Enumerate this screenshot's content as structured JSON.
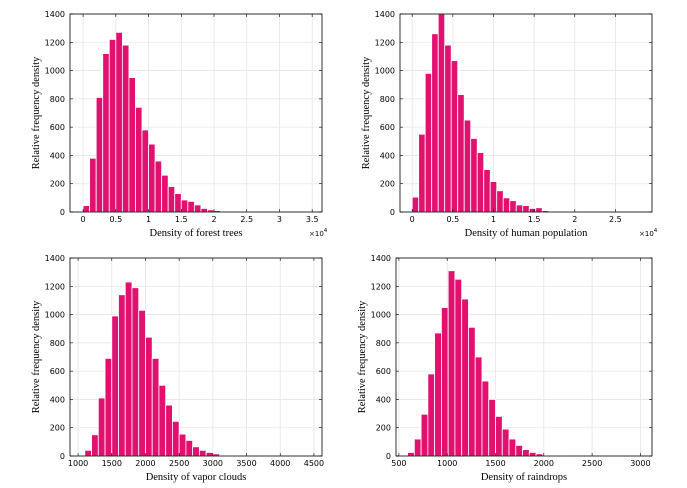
{
  "chart_data": [
    {
      "type": "bar",
      "title": "",
      "xlabel": "Density of forest trees",
      "ylabel": "Relative frequency density",
      "x_multiplier": "×10^4",
      "xlim": [
        -0.2,
        3.65
      ],
      "ylim": [
        0,
        1400
      ],
      "xticks": [
        0,
        0.5,
        1,
        1.5,
        2,
        2.5,
        3,
        3.5
      ],
      "xtick_labels": [
        "0",
        "0.5",
        "1",
        "1.5",
        "2",
        "2.5",
        "3",
        "3.5"
      ],
      "yticks": [
        0,
        200,
        400,
        600,
        800,
        1000,
        1200,
        1400
      ],
      "bin_start": 0,
      "bin_width": 0.1,
      "values": [
        45,
        380,
        810,
        1120,
        1220,
        1270,
        1180,
        950,
        740,
        580,
        480,
        360,
        260,
        180,
        130,
        85,
        75,
        50,
        25,
        15,
        10,
        5,
        3,
        2,
        1,
        1,
        0,
        0,
        0,
        0,
        0,
        0
      ]
    },
    {
      "type": "bar",
      "title": "",
      "xlabel": "Density of human population",
      "ylabel": "Relative frequency density",
      "x_multiplier": "×10^4",
      "xlim": [
        -0.15,
        2.95
      ],
      "ylim": [
        0,
        1400
      ],
      "xticks": [
        0,
        0.5,
        1,
        1.5,
        2,
        2.5
      ],
      "xtick_labels": [
        "0",
        "0.5",
        "1",
        "1.5",
        "2",
        "2.5"
      ],
      "yticks": [
        0,
        200,
        400,
        600,
        800,
        1000,
        1200,
        1400
      ],
      "bin_start": 0,
      "bin_width": 0.08,
      "values": [
        105,
        550,
        980,
        1260,
        1400,
        1180,
        1070,
        830,
        650,
        520,
        420,
        300,
        215,
        150,
        100,
        80,
        50,
        45,
        25,
        30,
        10,
        5,
        3,
        2,
        1,
        1,
        0,
        0,
        0,
        0,
        0,
        0,
        0
      ]
    },
    {
      "type": "bar",
      "title": "",
      "xlabel": "Density of vapor clouds",
      "ylabel": "Relative frequency density",
      "x_multiplier": "",
      "xlim": [
        880,
        4620
      ],
      "ylim": [
        0,
        1400
      ],
      "xticks": [
        1000,
        1500,
        2000,
        2500,
        3000,
        3500,
        4000,
        4500
      ],
      "xtick_labels": [
        "1000",
        "1500",
        "2000",
        "2500",
        "3000",
        "3500",
        "4000",
        "4500"
      ],
      "yticks": [
        0,
        200,
        400,
        600,
        800,
        1000,
        1200,
        1400
      ],
      "bin_start": 1100,
      "bin_width": 100,
      "values": [
        40,
        150,
        410,
        690,
        990,
        1140,
        1230,
        1190,
        1030,
        840,
        690,
        500,
        360,
        245,
        155,
        110,
        65,
        40,
        25,
        15,
        5,
        2,
        1,
        0,
        0,
        0,
        0,
        0,
        0,
        0
      ]
    },
    {
      "type": "bar",
      "title": "",
      "xlabel": "Density of raindrops",
      "ylabel": "Relative frequency density",
      "x_multiplier": "",
      "xlim": [
        470,
        3120
      ],
      "ylim": [
        0,
        1400
      ],
      "xticks": [
        500,
        1000,
        1500,
        2000,
        2500,
        3000
      ],
      "xtick_labels": [
        "500",
        "1000",
        "1500",
        "2000",
        "2500",
        "3000"
      ],
      "yticks": [
        0,
        200,
        400,
        600,
        800,
        1000,
        1200,
        1400
      ],
      "bin_start": 590,
      "bin_width": 70,
      "values": [
        25,
        120,
        295,
        580,
        870,
        1050,
        1310,
        1250,
        1110,
        910,
        700,
        530,
        400,
        280,
        190,
        120,
        75,
        45,
        25,
        15,
        5,
        3,
        1,
        0,
        0,
        0,
        0,
        0,
        0,
        0,
        0,
        0,
        0,
        0,
        0,
        0,
        0
      ]
    }
  ]
}
